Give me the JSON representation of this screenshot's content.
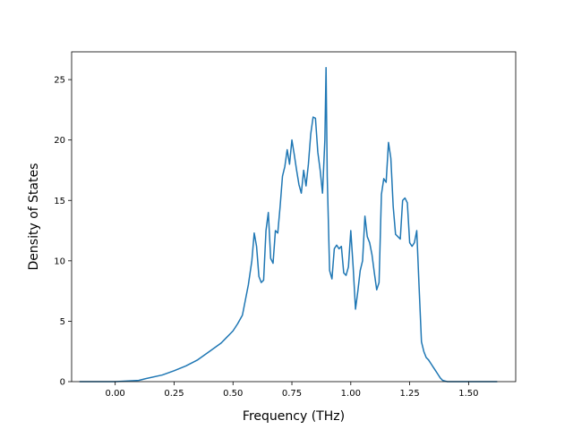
{
  "chart_data": {
    "type": "line",
    "title": "",
    "xlabel": "Frequency (THz)",
    "ylabel": "Density of States",
    "xlim": [
      -0.185,
      1.7
    ],
    "ylim": [
      0,
      27.3
    ],
    "xticks": [
      0.0,
      0.25,
      0.5,
      0.75,
      1.0,
      1.25,
      1.5
    ],
    "xtick_labels": [
      "0.00",
      "0.25",
      "0.50",
      "0.75",
      "1.00",
      "1.25",
      "1.50"
    ],
    "yticks": [
      0,
      5,
      10,
      15,
      20,
      25
    ],
    "ytick_labels": [
      "0",
      "5",
      "10",
      "15",
      "20",
      "25"
    ],
    "grid": false,
    "legend": "none",
    "series": [
      {
        "color": "#1f77b4",
        "x": [
          -0.15,
          0.0,
          0.1,
          0.13,
          0.2,
          0.25,
          0.3,
          0.35,
          0.4,
          0.45,
          0.5,
          0.52,
          0.54,
          0.55,
          0.565,
          0.58,
          0.59,
          0.6,
          0.61,
          0.62,
          0.63,
          0.64,
          0.65,
          0.66,
          0.67,
          0.68,
          0.69,
          0.7,
          0.71,
          0.72,
          0.73,
          0.74,
          0.75,
          0.76,
          0.77,
          0.78,
          0.79,
          0.8,
          0.81,
          0.82,
          0.83,
          0.84,
          0.85,
          0.86,
          0.87,
          0.88,
          0.89,
          0.895,
          0.9,
          0.91,
          0.92,
          0.93,
          0.94,
          0.95,
          0.96,
          0.97,
          0.98,
          0.99,
          1.0,
          1.01,
          1.02,
          1.03,
          1.04,
          1.05,
          1.06,
          1.07,
          1.08,
          1.09,
          1.1,
          1.11,
          1.12,
          1.13,
          1.14,
          1.15,
          1.16,
          1.17,
          1.18,
          1.19,
          1.2,
          1.21,
          1.22,
          1.23,
          1.24,
          1.25,
          1.26,
          1.27,
          1.28,
          1.29,
          1.3,
          1.31,
          1.32,
          1.33,
          1.34,
          1.35,
          1.36,
          1.37,
          1.38,
          1.39,
          1.4,
          1.41,
          1.42,
          1.43,
          1.44,
          1.45,
          1.46,
          1.47,
          1.48,
          1.5,
          1.55,
          1.62
        ],
        "y": [
          0,
          0,
          0.1,
          0.25,
          0.55,
          0.9,
          1.3,
          1.8,
          2.5,
          3.2,
          4.2,
          4.8,
          5.5,
          6.5,
          8.0,
          10.0,
          12.3,
          11.2,
          8.7,
          8.2,
          8.4,
          12.5,
          14.0,
          10.2,
          9.8,
          12.5,
          12.3,
          14.5,
          17.0,
          17.8,
          19.2,
          18.0,
          20.0,
          18.8,
          17.5,
          16.3,
          15.6,
          17.5,
          16.2,
          18.0,
          20.5,
          21.9,
          21.8,
          19.0,
          17.5,
          15.6,
          20.0,
          26.0,
          17.0,
          9.2,
          8.5,
          11.0,
          11.3,
          11.0,
          11.2,
          9.0,
          8.8,
          9.5,
          12.5,
          9.5,
          6.0,
          7.5,
          9.2,
          10.0,
          13.7,
          12.0,
          11.5,
          10.5,
          9.0,
          7.6,
          8.2,
          15.5,
          16.8,
          16.5,
          19.8,
          18.5,
          14.5,
          12.2,
          12.0,
          11.8,
          15.0,
          15.2,
          14.8,
          11.5,
          11.2,
          11.5,
          12.5,
          7.8,
          3.3,
          2.5,
          2.0,
          1.8,
          1.5,
          1.2,
          0.9,
          0.6,
          0.3,
          0.1,
          0.05,
          0.0,
          0,
          0,
          0,
          0,
          0,
          0,
          0,
          0,
          0,
          0
        ]
      }
    ]
  }
}
